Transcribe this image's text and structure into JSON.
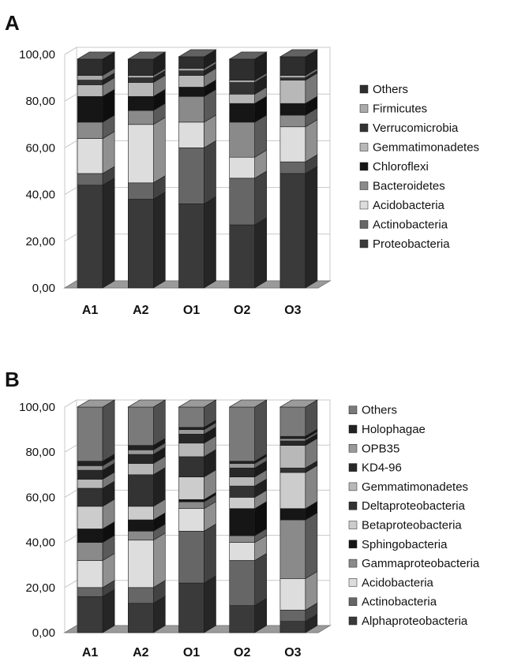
{
  "chart_data": [
    {
      "panel": "A",
      "type": "bar",
      "stacked": true,
      "style": "3d",
      "categories": [
        "A1",
        "A2",
        "O1",
        "O2",
        "O3"
      ],
      "ylim": [
        0,
        100
      ],
      "yticks": [
        "0,00",
        "20,00",
        "40,00",
        "60,00",
        "80,00",
        "100,00"
      ],
      "grid": true,
      "legend_position": "right",
      "series": [
        {
          "name": "Proteobacteria",
          "color": "#3a3a3a",
          "values": [
            44,
            38,
            36,
            27,
            49
          ]
        },
        {
          "name": "Actinobacteria",
          "color": "#666666",
          "values": [
            5,
            7,
            24,
            20,
            5
          ]
        },
        {
          "name": "Acidobacteria",
          "color": "#dddddd",
          "values": [
            15,
            25,
            11,
            9,
            15
          ]
        },
        {
          "name": "Bacteroidetes",
          "color": "#8a8a8a",
          "values": [
            7,
            6,
            11,
            15,
            5
          ]
        },
        {
          "name": "Chloroflexi",
          "color": "#161616",
          "values": [
            11,
            6,
            4,
            8,
            5
          ]
        },
        {
          "name": "Gemmatimonadetes",
          "color": "#b8b8b8",
          "values": [
            5,
            6,
            5,
            4,
            10
          ]
        },
        {
          "name": "Verrucomicrobia",
          "color": "#333333",
          "values": [
            2,
            2,
            2,
            5,
            1
          ]
        },
        {
          "name": "Firmicutes",
          "color": "#aaaaaa",
          "values": [
            2,
            1,
            1,
            1,
            1
          ]
        },
        {
          "name": "Others",
          "color": "#2e2e2e",
          "values": [
            7,
            7,
            5,
            9,
            8
          ]
        }
      ]
    },
    {
      "panel": "B",
      "type": "bar",
      "stacked": true,
      "style": "3d",
      "categories": [
        "A1",
        "A2",
        "O1",
        "O2",
        "O3"
      ],
      "ylim": [
        0,
        100
      ],
      "yticks": [
        "0,00",
        "20,00",
        "40,00",
        "60,00",
        "80,00",
        "100,00"
      ],
      "grid": true,
      "legend_position": "right",
      "series": [
        {
          "name": "Alphaproteobacteria",
          "color": "#3a3a3a",
          "values": [
            16,
            13,
            22,
            12,
            5
          ]
        },
        {
          "name": "Actinobacteria",
          "color": "#666666",
          "values": [
            4,
            7,
            23,
            20,
            5
          ]
        },
        {
          "name": "Acidobacteria",
          "color": "#dddddd",
          "values": [
            12,
            21,
            10,
            8,
            14
          ]
        },
        {
          "name": "Gammaproteobacteria",
          "color": "#8a8a8a",
          "values": [
            8,
            4,
            3,
            3,
            26
          ]
        },
        {
          "name": "Sphingobacteria",
          "color": "#161616",
          "values": [
            6,
            5,
            1,
            12,
            5
          ]
        },
        {
          "name": "Betaproteobacteria",
          "color": "#cccccc",
          "values": [
            10,
            6,
            10,
            5,
            16
          ]
        },
        {
          "name": "Deltaproteobacteria",
          "color": "#333333",
          "values": [
            8,
            14,
            9,
            5,
            2
          ]
        },
        {
          "name": "Gemmatimonadetes",
          "color": "#b8b8b8",
          "values": [
            4,
            5,
            6,
            4,
            10
          ]
        },
        {
          "name": "KD4-96",
          "color": "#282828",
          "values": [
            4,
            4,
            4,
            4,
            2
          ]
        },
        {
          "name": "OPB35",
          "color": "#999999",
          "values": [
            2,
            2,
            2,
            2,
            1
          ]
        },
        {
          "name": "Holophagae",
          "color": "#222222",
          "values": [
            2,
            2,
            1,
            1,
            1
          ]
        },
        {
          "name": "Others",
          "color": "#7a7a7a",
          "values": [
            24,
            17,
            9,
            24,
            13
          ]
        }
      ]
    }
  ]
}
